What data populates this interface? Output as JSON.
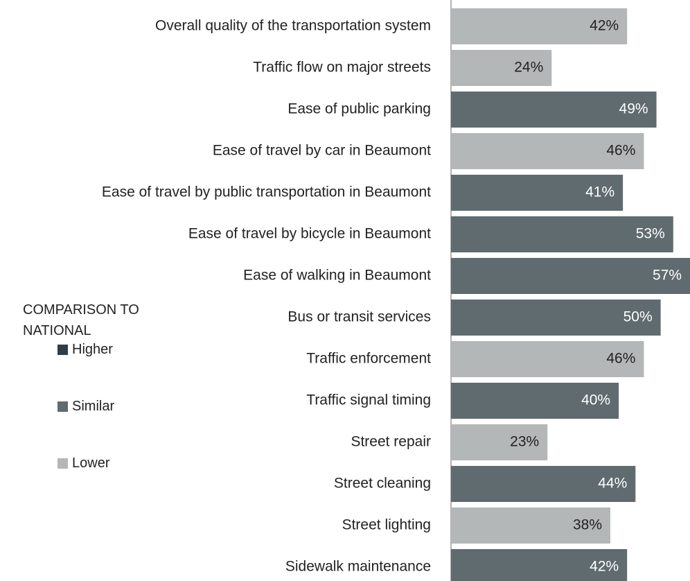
{
  "chart_data": {
    "type": "bar",
    "orientation": "horizontal",
    "categories": [
      "Overall quality of the transportation system",
      "Traffic flow on major streets",
      "Ease of public parking",
      "Ease of travel by car in Beaumont",
      "Ease of travel by public transportation in Beaumont",
      "Ease of travel by bicycle in Beaumont",
      "Ease of walking in Beaumont",
      "Bus or transit services",
      "Traffic enforcement",
      "Traffic signal timing",
      "Street repair",
      "Street cleaning",
      "Street lighting",
      "Sidewalk maintenance"
    ],
    "values": [
      42,
      24,
      49,
      46,
      41,
      53,
      57,
      50,
      46,
      40,
      23,
      44,
      38,
      42
    ],
    "value_labels": [
      "42%",
      "24%",
      "49%",
      "46%",
      "41%",
      "53%",
      "57%",
      "50%",
      "46%",
      "40%",
      "23%",
      "44%",
      "38%",
      "42%"
    ],
    "colors": [
      "#b3b7b8",
      "#b3b7b8",
      "#5f6b6f",
      "#b3b7b8",
      "#5f6b6f",
      "#5f6b6f",
      "#5f6b6f",
      "#5f6b6f",
      "#b3b7b8",
      "#5f6b6f",
      "#b3b7b8",
      "#5f6b6f",
      "#b3b7b8",
      "#5f6b6f"
    ],
    "legend": {
      "title": "COMPARISON TO NATIONAL",
      "items": [
        {
          "name": "Higher",
          "color": "#2e3e48"
        },
        {
          "name": "Similar",
          "color": "#5f6b6f"
        },
        {
          "name": "Lower",
          "color": "#b3b7b8"
        }
      ]
    }
  }
}
